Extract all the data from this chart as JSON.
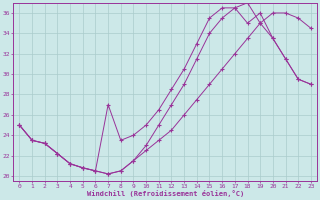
{
  "xlabel": "Windchill (Refroidissement éolien,°C)",
  "bg_color": "#cce8e8",
  "line_color": "#993399",
  "grid_color": "#aacccc",
  "xlim": [
    -0.5,
    23.5
  ],
  "ylim": [
    19.5,
    37.0
  ],
  "yticks": [
    20,
    22,
    24,
    26,
    28,
    30,
    32,
    34,
    36
  ],
  "xticks": [
    0,
    1,
    2,
    3,
    4,
    5,
    6,
    7,
    8,
    9,
    10,
    11,
    12,
    13,
    14,
    15,
    16,
    17,
    18,
    19,
    20,
    21,
    22,
    23
  ],
  "line1_x": [
    0,
    1,
    2,
    3,
    4,
    5,
    6,
    7,
    8,
    9,
    10,
    11,
    12,
    13,
    14,
    15,
    16,
    17,
    18,
    19,
    20,
    21,
    22,
    23
  ],
  "line1_y": [
    25.0,
    23.5,
    23.2,
    22.2,
    21.2,
    20.8,
    20.5,
    20.2,
    20.5,
    21.5,
    23.0,
    25.0,
    27.0,
    29.0,
    31.5,
    34.0,
    35.5,
    36.5,
    37.0,
    35.0,
    33.5,
    31.5,
    29.5,
    29.0
  ],
  "line2_x": [
    0,
    1,
    2,
    3,
    4,
    5,
    6,
    7,
    8,
    9,
    10,
    11,
    12,
    13,
    14,
    15,
    16,
    17,
    18,
    19,
    20,
    21,
    22,
    23
  ],
  "line2_y": [
    25.0,
    23.5,
    23.2,
    22.2,
    21.2,
    20.8,
    20.5,
    27.0,
    23.5,
    24.0,
    25.0,
    26.5,
    28.5,
    30.5,
    33.0,
    35.5,
    36.5,
    36.5,
    35.0,
    36.0,
    33.5,
    31.5,
    29.5,
    29.0
  ],
  "line3_x": [
    0,
    1,
    2,
    3,
    4,
    5,
    6,
    7,
    8,
    9,
    10,
    11,
    12,
    13,
    14,
    15,
    16,
    17,
    18,
    19,
    20,
    21,
    22,
    23
  ],
  "line3_y": [
    25.0,
    23.5,
    23.2,
    22.2,
    21.2,
    20.8,
    20.5,
    20.2,
    20.5,
    21.5,
    22.5,
    23.5,
    24.5,
    26.0,
    27.5,
    29.0,
    30.5,
    32.0,
    33.5,
    35.0,
    36.0,
    36.0,
    35.5,
    34.5
  ]
}
